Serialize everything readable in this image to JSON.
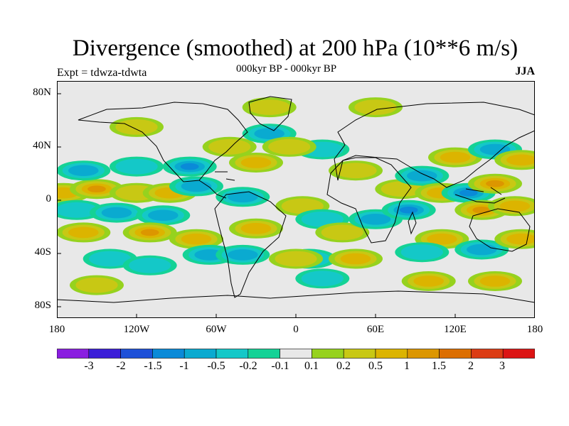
{
  "header": {
    "title": "Divergence (smoothed) at 200 hPa (10**6 m/s)",
    "subtitle": "000kyr BP - 000kyr BP",
    "expt": "Expt = tdwza-tdwta",
    "season": "JJA"
  },
  "axes": {
    "y_ticks": [
      "80N",
      "40N",
      "0",
      "40S",
      "80S"
    ],
    "x_ticks": [
      "180",
      "120W",
      "60W",
      "0",
      "60E",
      "120E",
      "180"
    ]
  },
  "legend": {
    "colors": [
      "#8a1ee0",
      "#3b1ed8",
      "#1e50d8",
      "#0a8ad8",
      "#0aaad0",
      "#14c8c8",
      "#14d296",
      "#e8e8e8",
      "#96d21e",
      "#c8c814",
      "#dcb400",
      "#dc9600",
      "#dc6e00",
      "#dc3c14",
      "#dc1414"
    ],
    "labels": [
      "-3",
      "-2",
      "-1.5",
      "-1",
      "-0.5",
      "-0.2",
      "-0.1",
      "0.1",
      "0.2",
      "0.5",
      "1",
      "1.5",
      "2",
      "3"
    ]
  },
  "map_data": {
    "lon_range": [
      -180,
      180
    ],
    "lat_range": [
      -90,
      90
    ],
    "background_color": "#e8e8e8",
    "anomalies": [
      {
        "lon": -175,
        "lat": 5,
        "v": 0.6
      },
      {
        "lon": -150,
        "lat": 8,
        "v": 1.0
      },
      {
        "lon": -120,
        "lat": 5,
        "v": 0.4
      },
      {
        "lon": -95,
        "lat": 5,
        "v": 0.5
      },
      {
        "lon": -165,
        "lat": -8,
        "v": -0.3
      },
      {
        "lon": -135,
        "lat": -10,
        "v": -0.5
      },
      {
        "lon": -100,
        "lat": -12,
        "v": -0.6
      },
      {
        "lon": -160,
        "lat": 22,
        "v": -0.8
      },
      {
        "lon": -120,
        "lat": 25,
        "v": -0.4
      },
      {
        "lon": -80,
        "lat": 25,
        "v": -1.2
      },
      {
        "lon": -160,
        "lat": -25,
        "v": 0.5
      },
      {
        "lon": -110,
        "lat": -25,
        "v": 1.0
      },
      {
        "lon": -75,
        "lat": -30,
        "v": 0.8
      },
      {
        "lon": -140,
        "lat": -45,
        "v": -0.4
      },
      {
        "lon": -110,
        "lat": -50,
        "v": -0.3
      },
      {
        "lon": -65,
        "lat": -42,
        "v": -0.5
      },
      {
        "lon": -40,
        "lat": -42,
        "v": -0.8
      },
      {
        "lon": -30,
        "lat": -22,
        "v": 0.6
      },
      {
        "lon": -40,
        "lat": 2,
        "v": -0.8
      },
      {
        "lon": -50,
        "lat": 40,
        "v": 0.3
      },
      {
        "lon": -20,
        "lat": 50,
        "v": -0.5
      },
      {
        "lon": -30,
        "lat": 28,
        "v": 0.5
      },
      {
        "lon": 5,
        "lat": -5,
        "v": 0.4
      },
      {
        "lon": 20,
        "lat": -15,
        "v": -0.3
      },
      {
        "lon": 10,
        "lat": -45,
        "v": -0.4
      },
      {
        "lon": 35,
        "lat": -25,
        "v": 0.3
      },
      {
        "lon": 45,
        "lat": -45,
        "v": 0.6
      },
      {
        "lon": 60,
        "lat": -15,
        "v": -0.6
      },
      {
        "lon": 85,
        "lat": -8,
        "v": -1.0
      },
      {
        "lon": 80,
        "lat": 8,
        "v": 0.4
      },
      {
        "lon": 95,
        "lat": 18,
        "v": -0.6
      },
      {
        "lon": 110,
        "lat": 5,
        "v": 0.5
      },
      {
        "lon": 130,
        "lat": 5,
        "v": -1.2
      },
      {
        "lon": 150,
        "lat": 12,
        "v": 1.0
      },
      {
        "lon": 140,
        "lat": -8,
        "v": 1.1
      },
      {
        "lon": 165,
        "lat": -5,
        "v": 0.8
      },
      {
        "lon": 120,
        "lat": 32,
        "v": 0.8
      },
      {
        "lon": 150,
        "lat": 38,
        "v": -0.5
      },
      {
        "lon": 170,
        "lat": 30,
        "v": 0.6
      },
      {
        "lon": 110,
        "lat": -30,
        "v": 0.5
      },
      {
        "lon": 140,
        "lat": -38,
        "v": -0.5
      },
      {
        "lon": 170,
        "lat": -30,
        "v": 0.5
      },
      {
        "lon": 95,
        "lat": -40,
        "v": -0.4
      },
      {
        "lon": 0,
        "lat": -45,
        "v": 0.4
      },
      {
        "lon": 20,
        "lat": -60,
        "v": -0.3
      },
      {
        "lon": 100,
        "lat": -62,
        "v": 0.6
      },
      {
        "lon": 150,
        "lat": -62,
        "v": 0.5
      },
      {
        "lon": -150,
        "lat": -65,
        "v": 0.3
      },
      {
        "lon": -20,
        "lat": 70,
        "v": 0.4
      },
      {
        "lon": 60,
        "lat": 70,
        "v": 0.3
      },
      {
        "lon": -120,
        "lat": 55,
        "v": 0.3
      },
      {
        "lon": 20,
        "lat": 38,
        "v": -0.4
      },
      {
        "lon": 45,
        "lat": 22,
        "v": 0.3
      },
      {
        "lon": -75,
        "lat": 10,
        "v": -0.6
      },
      {
        "lon": -5,
        "lat": 40,
        "v": 0.4
      }
    ]
  }
}
